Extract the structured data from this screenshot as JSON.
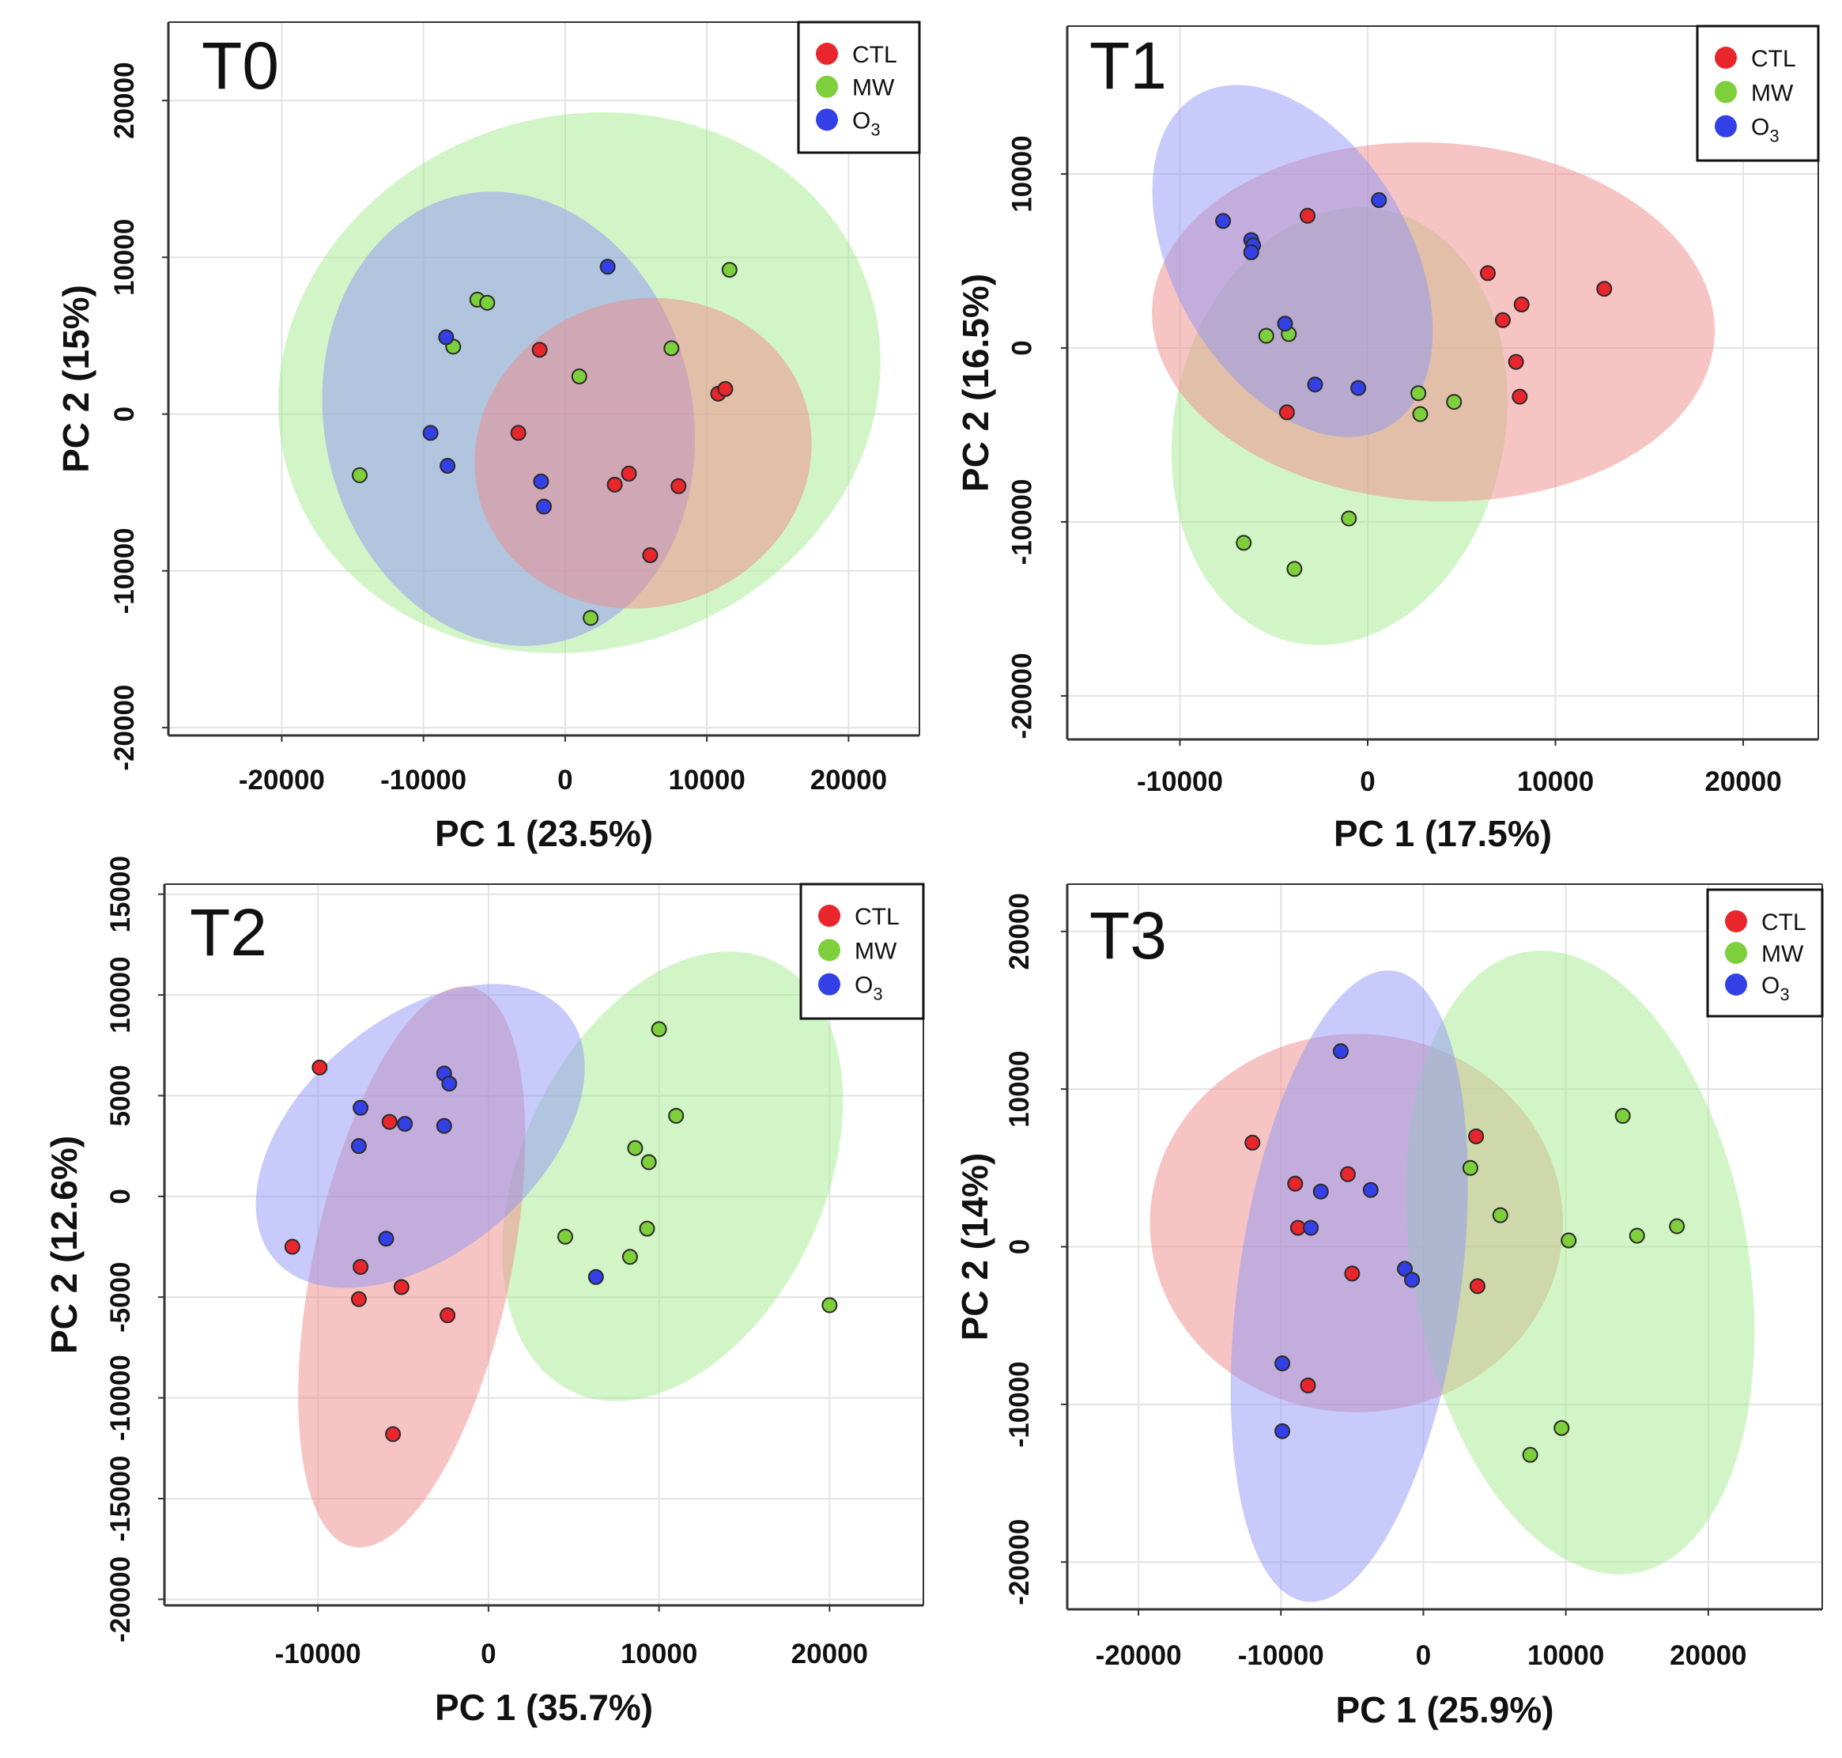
{
  "colors": {
    "CTL": "#e8262b",
    "MW": "#7dcf3b",
    "O3": "#3340e6"
  },
  "fills": {
    "CTL": "#f08a8a",
    "MW": "#a6eb8f",
    "O3": "#8f95f5"
  },
  "legend": [
    {
      "key": "CTL",
      "label": "CTL",
      "sub": ""
    },
    {
      "key": "MW",
      "label": "MW",
      "sub": ""
    },
    {
      "key": "O3",
      "label": "O",
      "sub": "3"
    }
  ],
  "chart_data": [
    {
      "type": "scatter",
      "title": "T0",
      "xlabel": "PC 1 (23.5%)",
      "ylabel": "PC 2 (15%)",
      "xlim": [
        -28000,
        25000
      ],
      "ylim": [
        -20500,
        25000
      ],
      "xticks": [
        -20000,
        -10000,
        0,
        10000,
        20000
      ],
      "yticks": [
        -20000,
        -10000,
        0,
        10000,
        20000
      ],
      "xtick_labels": [
        "-20000",
        "-10000",
        "0",
        "10000",
        "20000"
      ],
      "ytick_labels": [
        "-20000",
        "-10000",
        "0",
        "10000",
        "20000"
      ],
      "ellipses": [
        {
          "group": "MW",
          "cx": 1000,
          "cy": 2000,
          "rx": 21500,
          "ry": 17000,
          "angle": 18
        },
        {
          "group": "O3",
          "cx": -4000,
          "cy": -300,
          "rx": 13000,
          "ry": 14600,
          "angle": 12
        },
        {
          "group": "CTL",
          "cx": 5500,
          "cy": -2500,
          "rx": 12000,
          "ry": 9800,
          "angle": 18
        }
      ],
      "series": [
        {
          "name": "CTL",
          "points": [
            [
              -1800,
              4100
            ],
            [
              -3300,
              -1200
            ],
            [
              3500,
              -4500
            ],
            [
              4500,
              -3800
            ],
            [
              8000,
              -4600
            ],
            [
              6000,
              -9000
            ],
            [
              10800,
              1300
            ],
            [
              11300,
              1600
            ]
          ]
        },
        {
          "name": "MW",
          "points": [
            [
              -14500,
              -3900
            ],
            [
              -6200,
              7300
            ],
            [
              -5500,
              7100
            ],
            [
              -7900,
              4300
            ],
            [
              1000,
              2400
            ],
            [
              7500,
              4200
            ],
            [
              11600,
              9200
            ],
            [
              1800,
              -13000
            ]
          ]
        },
        {
          "name": "O3",
          "points": [
            [
              3000,
              9400
            ],
            [
              -8400,
              4900
            ],
            [
              -9500,
              -1200
            ],
            [
              -8300,
              -3300
            ],
            [
              -1700,
              -4300
            ],
            [
              -1500,
              -5900
            ]
          ]
        }
      ]
    },
    {
      "type": "scatter",
      "title": "T1",
      "xlabel": "PC 1 (17.5%)",
      "ylabel": "PC 2 (16.5%)",
      "xlim": [
        -16000,
        24000
      ],
      "ylim": [
        -22500,
        18500
      ],
      "xticks": [
        -10000,
        0,
        10000,
        20000
      ],
      "yticks": [
        -20000,
        -10000,
        0,
        10000
      ],
      "xtick_labels": [
        "-10000",
        "0",
        "10000",
        "20000"
      ],
      "ytick_labels": [
        "-20000",
        "-10000",
        "0",
        "10000"
      ],
      "ellipses": [
        {
          "group": "MW",
          "cx": -1500,
          "cy": -4500,
          "rx": 8800,
          "ry": 12700,
          "angle": -12
        },
        {
          "group": "CTL",
          "cx": 3500,
          "cy": 1500,
          "rx": 15000,
          "ry": 10300,
          "angle": -3
        },
        {
          "group": "O3",
          "cx": -4000,
          "cy": 5000,
          "rx": 6300,
          "ry": 11000,
          "angle": 30
        }
      ],
      "series": [
        {
          "name": "CTL",
          "points": [
            [
              -3200,
              7600
            ],
            [
              6400,
              4300
            ],
            [
              8200,
              2500
            ],
            [
              7200,
              1600
            ],
            [
              7900,
              -800
            ],
            [
              8100,
              -2800
            ],
            [
              12600,
              3400
            ],
            [
              -4300,
              -3700
            ]
          ]
        },
        {
          "name": "MW",
          "points": [
            [
              -5400,
              700
            ],
            [
              -4200,
              800
            ],
            [
              2700,
              -2600
            ],
            [
              2800,
              -3800
            ],
            [
              4600,
              -3100
            ],
            [
              -1000,
              -9800
            ],
            [
              -6600,
              -11200
            ],
            [
              -3900,
              -12700
            ]
          ]
        },
        {
          "name": "O3",
          "points": [
            [
              -7700,
              7300
            ],
            [
              -6200,
              6200
            ],
            [
              -6100,
              5900
            ],
            [
              -6200,
              5500
            ],
            [
              600,
              8500
            ],
            [
              -4400,
              1400
            ],
            [
              -2800,
              -2100
            ],
            [
              -500,
              -2300
            ]
          ]
        }
      ]
    },
    {
      "type": "scatter",
      "title": "T2",
      "xlabel": "PC 1 (35.7%)",
      "ylabel": "PC 2 (12.6%)",
      "xlim": [
        -19000,
        25500
      ],
      "ylim": [
        -20300,
        15500
      ],
      "xticks": [
        -10000,
        0,
        10000,
        20000
      ],
      "yticks": [
        -20000,
        -15000,
        -10000,
        -5000,
        0,
        5000,
        10000,
        15000
      ],
      "xtick_labels": [
        "-10000",
        "0",
        "10000",
        "20000"
      ],
      "ytick_labels": [
        "-20000",
        "-15000",
        "-10000",
        "-5000",
        "0",
        "5000",
        "10000",
        "15000"
      ],
      "ellipses": [
        {
          "group": "MW",
          "cx": 10800,
          "cy": 1000,
          "rx": 8900,
          "ry": 11800,
          "angle": -25
        },
        {
          "group": "CTL",
          "cx": -4500,
          "cy": -3500,
          "rx": 5800,
          "ry": 14200,
          "angle": -12
        },
        {
          "group": "O3",
          "cx": -4000,
          "cy": 3000,
          "rx": 11200,
          "ry": 5800,
          "angle": 40
        }
      ],
      "series": [
        {
          "name": "CTL",
          "points": [
            [
              -9900,
              6400
            ],
            [
              -5800,
              3700
            ],
            [
              -11500,
              -2500
            ],
            [
              -7500,
              -3500
            ],
            [
              -5100,
              -4500
            ],
            [
              -7600,
              -5100
            ],
            [
              -2400,
              -5900
            ],
            [
              -5600,
              -11800
            ]
          ]
        },
        {
          "name": "MW",
          "points": [
            [
              10000,
              8300
            ],
            [
              11000,
              4000
            ],
            [
              8600,
              2400
            ],
            [
              9400,
              1700
            ],
            [
              4500,
              -2000
            ],
            [
              9300,
              -1600
            ],
            [
              8300,
              -3000
            ],
            [
              20000,
              -5400
            ]
          ]
        },
        {
          "name": "O3",
          "points": [
            [
              -2600,
              6100
            ],
            [
              -2300,
              5600
            ],
            [
              -7500,
              4400
            ],
            [
              -4900,
              3600
            ],
            [
              -2600,
              3500
            ],
            [
              -7600,
              2500
            ],
            [
              -6000,
              -2100
            ],
            [
              6300,
              -4000
            ]
          ]
        }
      ]
    },
    {
      "type": "scatter",
      "title": "T3",
      "xlabel": "PC 1 (25.9%)",
      "ylabel": "PC 2 (14%)",
      "xlim": [
        -25000,
        28000
      ],
      "ylim": [
        -23000,
        23000
      ],
      "xticks": [
        -20000,
        -10000,
        0,
        10000,
        20000
      ],
      "yticks": [
        -20000,
        -10000,
        0,
        10000,
        20000
      ],
      "xtick_labels": [
        "-20000",
        "-10000",
        "0",
        "10000",
        "20000"
      ],
      "ytick_labels": [
        "-20000",
        "-10000",
        "0",
        "10000",
        "20000"
      ],
      "ellipses": [
        {
          "group": "CTL",
          "cx": -4700,
          "cy": 1500,
          "rx": 14500,
          "ry": 12000,
          "angle": 0
        },
        {
          "group": "MW",
          "cx": 11000,
          "cy": -1000,
          "rx": 11800,
          "ry": 20000,
          "angle": 10
        },
        {
          "group": "O3",
          "cx": -5200,
          "cy": -2500,
          "rx": 7800,
          "ry": 20200,
          "angle": -8
        }
      ],
      "series": [
        {
          "name": "CTL",
          "points": [
            [
              -12000,
              6600
            ],
            [
              -9000,
              4000
            ],
            [
              -5300,
              4600
            ],
            [
              -8800,
              1200
            ],
            [
              -5000,
              -1700
            ],
            [
              3700,
              7000
            ],
            [
              3800,
              -2500
            ],
            [
              -8100,
              -8800
            ]
          ]
        },
        {
          "name": "MW",
          "points": [
            [
              3300,
              5000
            ],
            [
              5400,
              2000
            ],
            [
              14000,
              8300
            ],
            [
              10200,
              400
            ],
            [
              15000,
              700
            ],
            [
              17800,
              1300
            ],
            [
              9700,
              -11500
            ],
            [
              7500,
              -13200
            ]
          ]
        },
        {
          "name": "O3",
          "points": [
            [
              -5800,
              12400
            ],
            [
              -7200,
              3500
            ],
            [
              -3700,
              3600
            ],
            [
              -7900,
              1200
            ],
            [
              -1300,
              -1400
            ],
            [
              -800,
              -2100
            ],
            [
              -9900,
              -7400
            ],
            [
              -9900,
              -11700
            ]
          ]
        }
      ]
    }
  ]
}
